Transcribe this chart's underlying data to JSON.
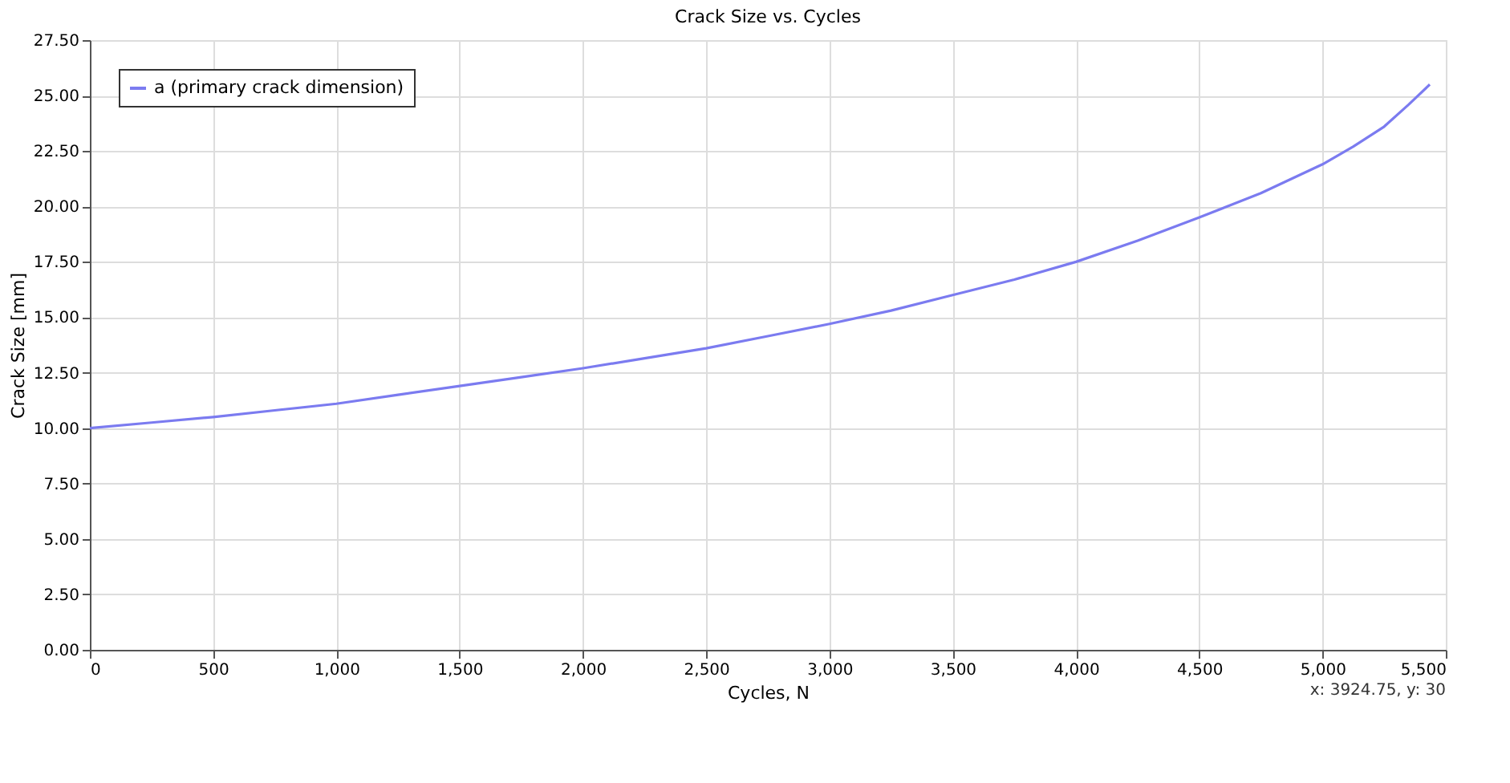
{
  "chart_data": {
    "type": "line",
    "title": "Crack Size vs. Cycles",
    "xlabel": "Cycles, N",
    "ylabel": "Crack Size [mm]",
    "x": [
      0,
      250,
      500,
      750,
      1000,
      1250,
      1500,
      1750,
      2000,
      2250,
      2500,
      2750,
      3000,
      3250,
      3500,
      3750,
      4000,
      4250,
      4500,
      4750,
      5000,
      5125,
      5250,
      5350,
      5435
    ],
    "series": [
      {
        "name": "a (primary crack dimension)",
        "color": "#7b7bf0",
        "values": [
          10.0,
          10.25,
          10.5,
          10.8,
          11.1,
          11.5,
          11.9,
          12.3,
          12.7,
          13.15,
          13.6,
          14.15,
          14.7,
          15.3,
          16.0,
          16.7,
          17.5,
          18.45,
          19.5,
          20.6,
          21.9,
          22.7,
          23.6,
          24.6,
          25.5
        ]
      }
    ],
    "xlim": [
      0,
      5500
    ],
    "xticks": [
      0,
      500,
      {
        "value": 1000,
        "label": "1,000"
      },
      {
        "value": 1500,
        "label": "1,500"
      },
      {
        "value": 2000,
        "label": "2,000"
      },
      {
        "value": 2500,
        "label": "2,500"
      },
      {
        "value": 3000,
        "label": "3,000"
      },
      {
        "value": 3500,
        "label": "3,500"
      },
      {
        "value": 4000,
        "label": "4,000"
      },
      {
        "value": 4500,
        "label": "4,500"
      },
      {
        "value": 5000,
        "label": "5,000"
      },
      {
        "value": 5500,
        "label": "5,500"
      }
    ],
    "ylim": [
      0,
      27.5
    ],
    "yticks": [
      {
        "value": 0,
        "label": "0.00"
      },
      {
        "value": 2.5,
        "label": "2.50"
      },
      {
        "value": 5,
        "label": "5.00"
      },
      {
        "value": 7.5,
        "label": "7.50"
      },
      {
        "value": 10,
        "label": "10.00"
      },
      {
        "value": 12.5,
        "label": "12.50"
      },
      {
        "value": 15,
        "label": "15.00"
      },
      {
        "value": 17.5,
        "label": "17.50"
      },
      {
        "value": 20,
        "label": "20.00"
      },
      {
        "value": 22.5,
        "label": "22.50"
      },
      {
        "value": 25,
        "label": "25.00"
      },
      {
        "value": 27.5,
        "label": "27.50"
      }
    ],
    "grid": true,
    "legend": "top left",
    "marker": "none",
    "line_style": "solid",
    "annotations": [
      "x: 3924.75, y: 30"
    ]
  }
}
